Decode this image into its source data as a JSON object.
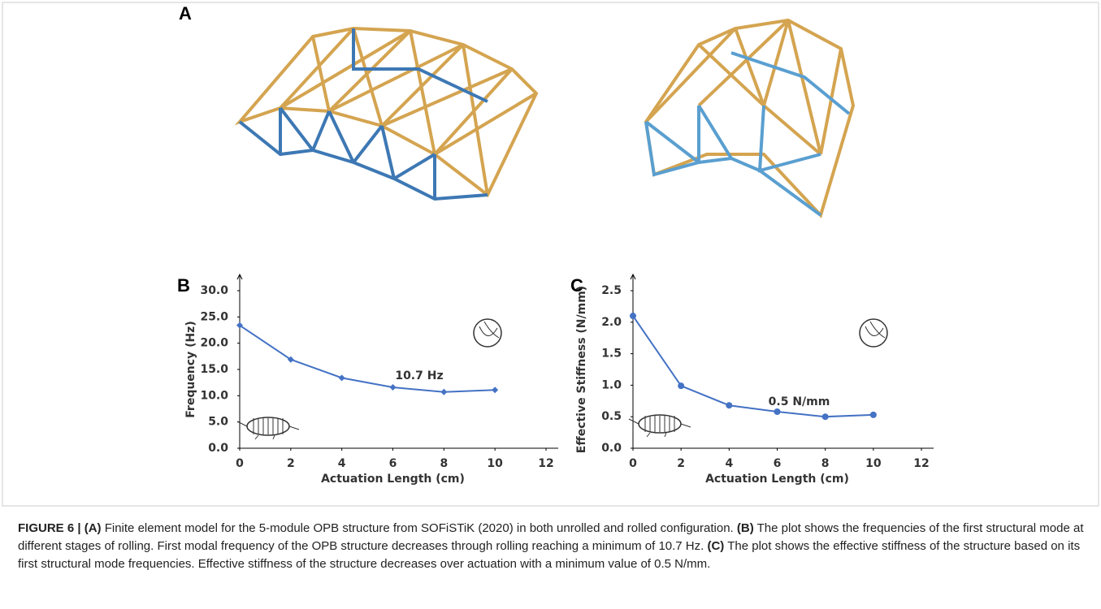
{
  "panel_a": {
    "label": "A"
  },
  "chart_data": [
    {
      "type": "line",
      "panel_label": "B",
      "y_label": "Frequency (Hz)",
      "x_label": "Actuation Length (cm)",
      "x": [
        0,
        2,
        4,
        6,
        8,
        10
      ],
      "values": [
        23.4,
        16.9,
        13.4,
        11.6,
        10.7,
        11.1
      ],
      "color": "#4472c4",
      "marker": "diamond",
      "xlim": [
        0,
        12
      ],
      "xticks": [
        0,
        2,
        4,
        6,
        8,
        10,
        12
      ],
      "ylim": [
        0,
        30
      ],
      "yticks": [
        {
          "value": 0,
          "label": "0.0"
        },
        {
          "value": 5,
          "label": "5.0"
        },
        {
          "value": 10,
          "label": "10.0"
        },
        {
          "value": 15,
          "label": "15.0"
        },
        {
          "value": 20,
          "label": "20.0"
        },
        {
          "value": 25,
          "label": "25.0"
        },
        {
          "value": 30,
          "label": "30.0"
        }
      ],
      "annotation": "10.7 Hz"
    },
    {
      "type": "line",
      "panel_label": "C",
      "y_label": "Effective Stiffness (N/mm)",
      "x_label": "Actuation Length (cm)",
      "x": [
        0,
        2,
        4,
        6,
        8,
        10
      ],
      "values": [
        2.1,
        0.99,
        0.68,
        0.58,
        0.5,
        0.53
      ],
      "color": "#4472c4",
      "marker": "circle",
      "xlim": [
        0,
        12
      ],
      "xticks": [
        0,
        2,
        4,
        6,
        8,
        10,
        12
      ],
      "ylim": [
        0,
        2.5
      ],
      "yticks": [
        {
          "value": 0,
          "label": "0.0"
        },
        {
          "value": 0.5,
          "label": "0.5"
        },
        {
          "value": 1,
          "label": "1.0"
        },
        {
          "value": 1.5,
          "label": "1.5"
        },
        {
          "value": 2,
          "label": "2.0"
        },
        {
          "value": 2.5,
          "label": "2.5"
        }
      ],
      "annotation": "0.5 N/mm"
    }
  ],
  "caption": {
    "figure_label": "FIGURE 6 |",
    "parts": [
      {
        "label": "(A)",
        "text": "Finite element model for the 5-module OPB structure from SOFiSTiK (2020) in both unrolled and rolled configuration."
      },
      {
        "label": "(B)",
        "text": "The plot shows the frequencies of the first structural mode at different stages of rolling. First modal frequency of the OPB structure decreases through rolling reaching a minimum of 10.7 Hz."
      },
      {
        "label": "(C)",
        "text": "The plot shows the effective stiffness of the structure based on its first structural mode frequencies. Effective stiffness of the structure decreases over actuation with a minimum value of 0.5 N/mm."
      }
    ]
  }
}
